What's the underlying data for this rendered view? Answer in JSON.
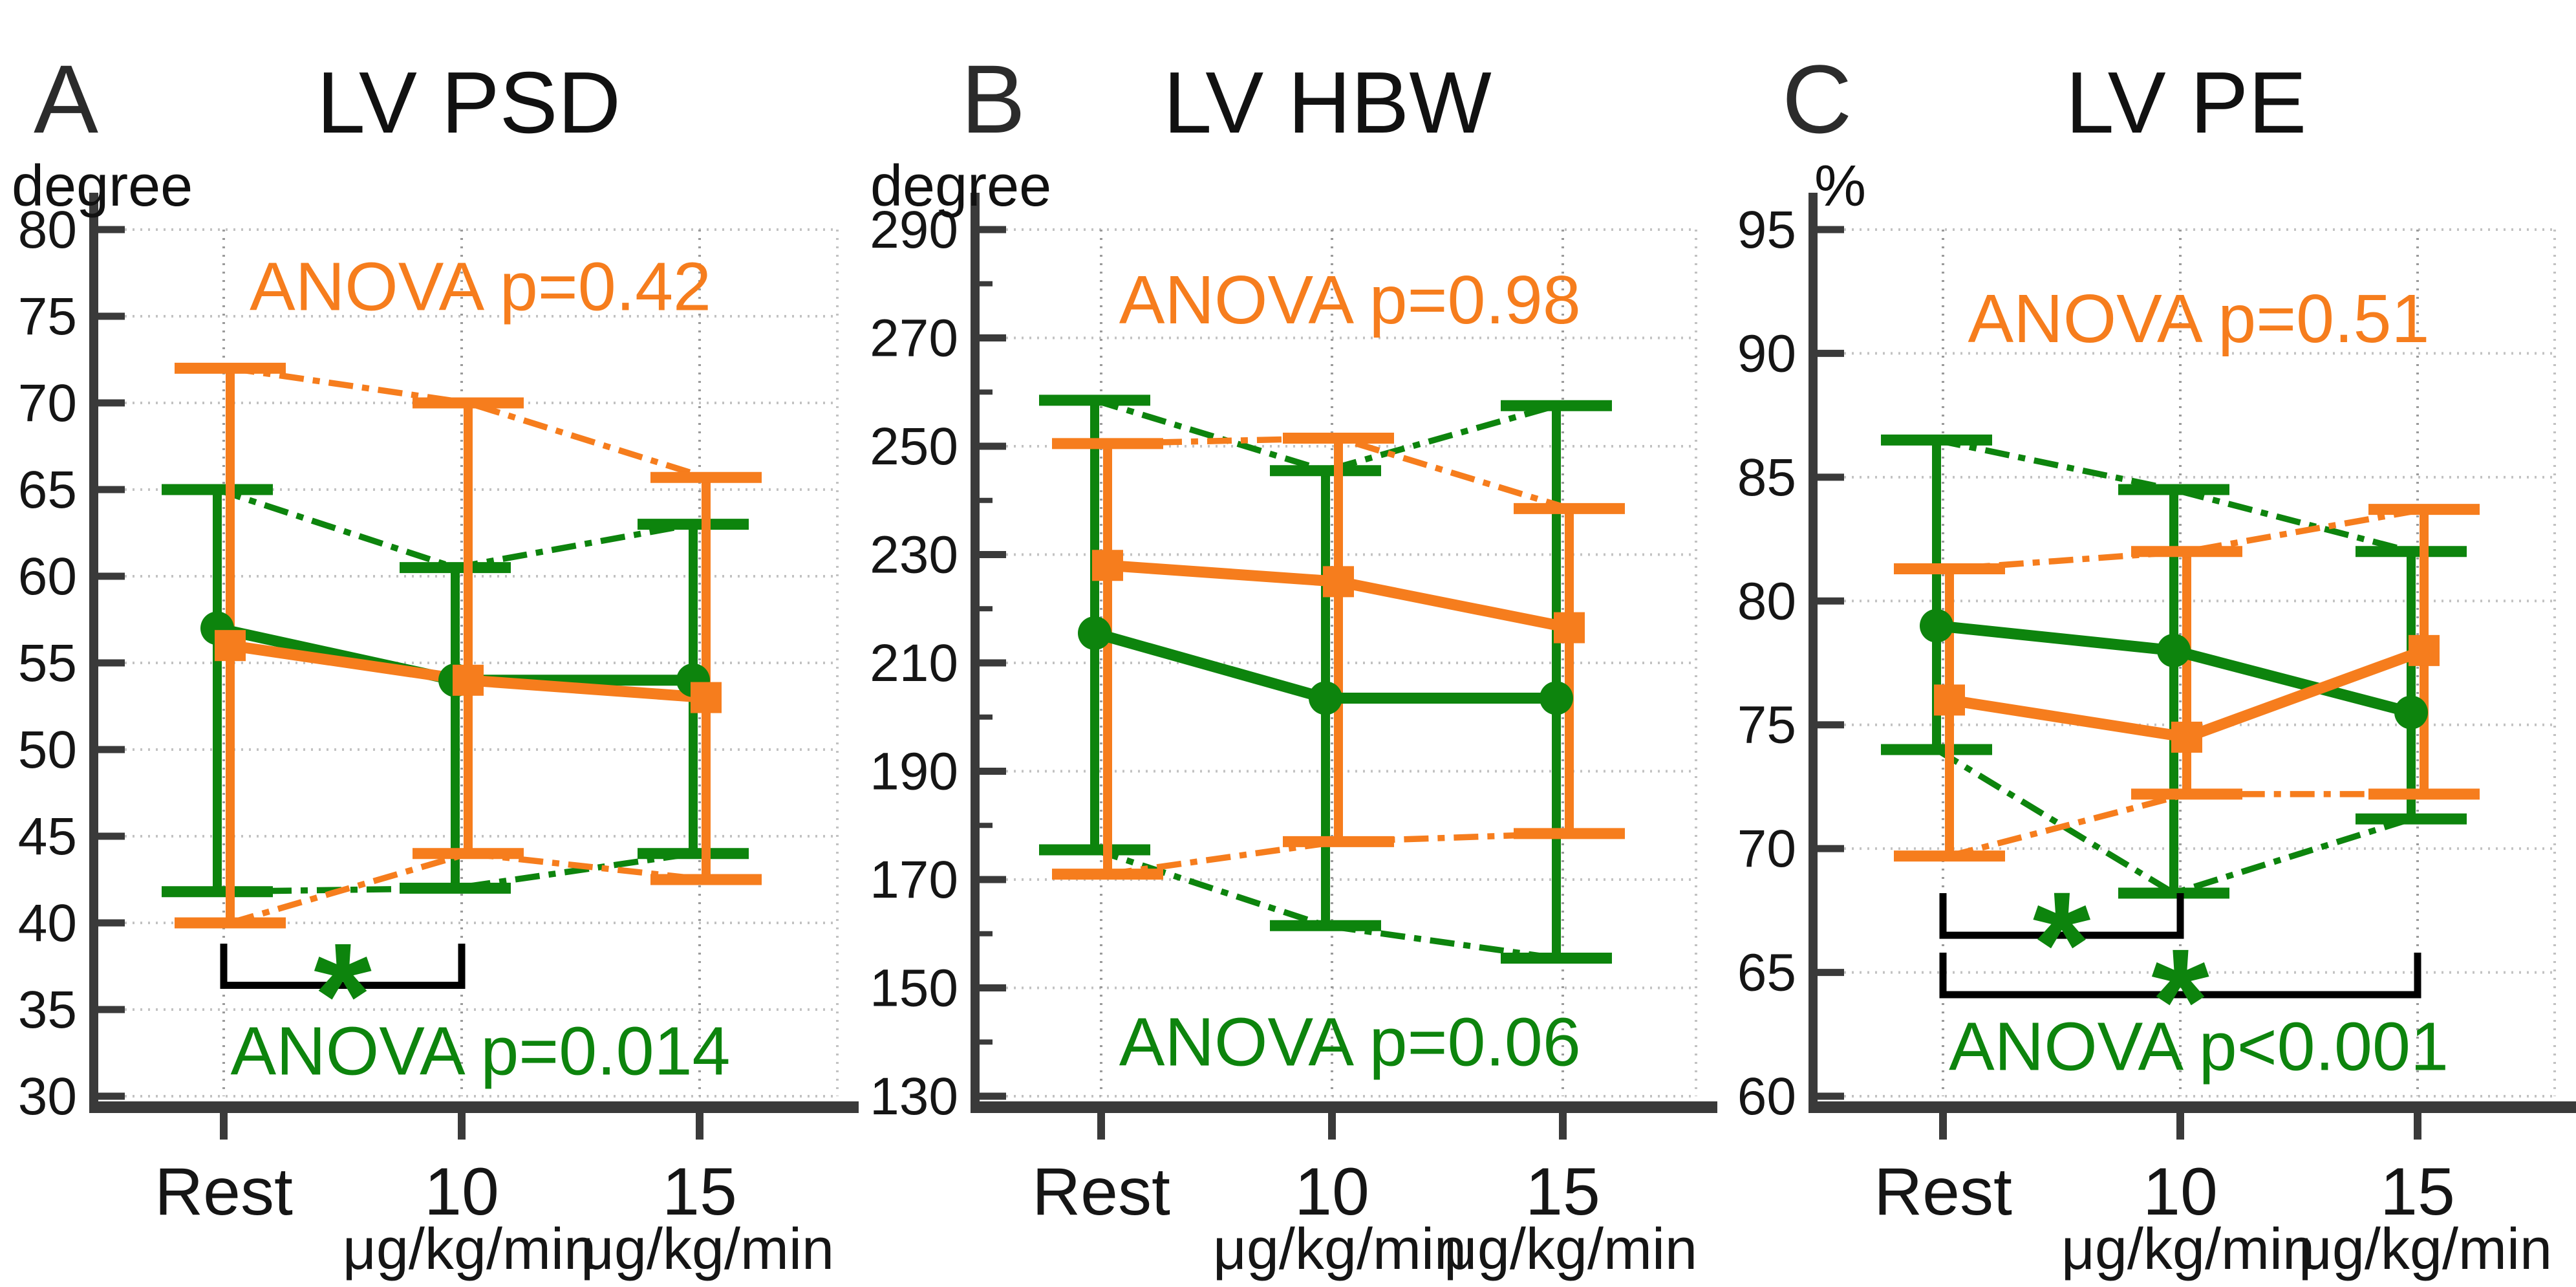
{
  "figure": {
    "background": "#ffffff",
    "colors": {
      "green_series": "#0d840d",
      "orange_series": "#f67d1d",
      "axis": "#3a3a3a",
      "tick_label": "#151515",
      "grid_horizontal": "#c2c2c2",
      "grid_vertical": "#9b9b9b",
      "bracket": "#000000"
    }
  },
  "chart_data": [
    {
      "id": "A",
      "type": "line",
      "panel_letter": "A",
      "title": "LV PSD",
      "unit_label": "degree",
      "categories": [
        "Rest",
        "10",
        "15"
      ],
      "x_tick_labels": [
        "Rest",
        "10",
        "15"
      ],
      "x_unit_labels": [
        "",
        "μg/kg/min",
        "μg/kg/min"
      ],
      "ylim": [
        30,
        80
      ],
      "ytick_step": 5,
      "y_minor_step": null,
      "grid": true,
      "series": [
        {
          "name": "series-green",
          "color": "#0d840d",
          "marker": "circle",
          "means": [
            57,
            54,
            54
          ],
          "upper": [
            65,
            60.5,
            63
          ],
          "lower": [
            41.8,
            42,
            44
          ]
        },
        {
          "name": "series-orange",
          "color": "#f67d1d",
          "marker": "square",
          "means": [
            56,
            54,
            53
          ],
          "upper": [
            72,
            70,
            65.7
          ],
          "lower": [
            40,
            44,
            42.5
          ]
        }
      ],
      "anova": [
        {
          "text": "ANOVA p=0.42",
          "series": "series-orange",
          "color": "#f67d1d",
          "y_value": 76.7
        },
        {
          "text": "ANOVA p=0.014",
          "series": "series-green",
          "color": "#0d840d",
          "y_value": 32.6
        }
      ],
      "significance": [
        {
          "from": 0,
          "to": 1,
          "bar_y": 36.4,
          "stub_to": 38.8,
          "star_y": 37.9,
          "star": "*",
          "star_color": "#0d840d"
        }
      ]
    },
    {
      "id": "B",
      "type": "line",
      "panel_letter": "B",
      "title": "LV HBW",
      "unit_label": "degree",
      "categories": [
        "Rest",
        "10",
        "15"
      ],
      "x_tick_labels": [
        "Rest",
        "10",
        "15"
      ],
      "x_unit_labels": [
        "",
        "μg/kg/min",
        "μg/kg/min"
      ],
      "ylim": [
        130,
        290
      ],
      "ytick_step": 20,
      "y_minor_step": 10,
      "grid": true,
      "series": [
        {
          "name": "series-green",
          "color": "#0d840d",
          "marker": "circle",
          "means": [
            215.5,
            203.5,
            203.5
          ],
          "upper": [
            258.5,
            245.5,
            257.5
          ],
          "lower": [
            175.5,
            161.5,
            155.5
          ]
        },
        {
          "name": "series-orange",
          "color": "#f67d1d",
          "marker": "square",
          "means": [
            228,
            225,
            216.5
          ],
          "upper": [
            250.5,
            251.5,
            238.5
          ],
          "lower": [
            171,
            177,
            178.5
          ]
        }
      ],
      "anova": [
        {
          "text": "ANOVA p=0.98",
          "series": "series-orange",
          "color": "#f67d1d",
          "y_value": 277
        },
        {
          "text": "ANOVA p=0.06",
          "series": "series-green",
          "color": "#0d840d",
          "y_value": 140
        }
      ],
      "significance": []
    },
    {
      "id": "C",
      "type": "line",
      "panel_letter": "C",
      "title": "LV PE",
      "unit_label": "%",
      "categories": [
        "Rest",
        "10",
        "15"
      ],
      "x_tick_labels": [
        "Rest",
        "10",
        "15"
      ],
      "x_unit_labels": [
        "",
        "μg/kg/min",
        "μg/kg/min"
      ],
      "ylim": [
        60,
        95
      ],
      "ytick_step": 5,
      "y_minor_step": null,
      "grid": true,
      "series": [
        {
          "name": "series-green",
          "color": "#0d840d",
          "marker": "circle",
          "means": [
            79,
            78,
            75.5
          ],
          "upper": [
            86.5,
            84.5,
            82
          ],
          "lower": [
            74,
            68.2,
            71.2
          ]
        },
        {
          "name": "series-orange",
          "color": "#f67d1d",
          "marker": "square",
          "means": [
            76,
            74.5,
            78
          ],
          "upper": [
            81.3,
            82,
            83.7
          ],
          "lower": [
            69.7,
            72.2,
            72.2
          ]
        }
      ],
      "anova": [
        {
          "text": "ANOVA p=0.51",
          "series": "series-orange",
          "color": "#f67d1d",
          "y_value": 91.4
        },
        {
          "text": "ANOVA p<0.001",
          "series": "series-green",
          "color": "#0d840d",
          "y_value": 62.0
        }
      ],
      "significance": [
        {
          "from": 0,
          "to": 1,
          "bar_y": 66.5,
          "stub_to": 68.2,
          "star_y": 67.6,
          "star": "*",
          "star_color": "#0d840d"
        },
        {
          "from": 0,
          "to": 2,
          "bar_y": 64.1,
          "stub_to": 65.8,
          "star_y": 65.3,
          "star": "*",
          "star_color": "#0d840d"
        }
      ]
    }
  ]
}
